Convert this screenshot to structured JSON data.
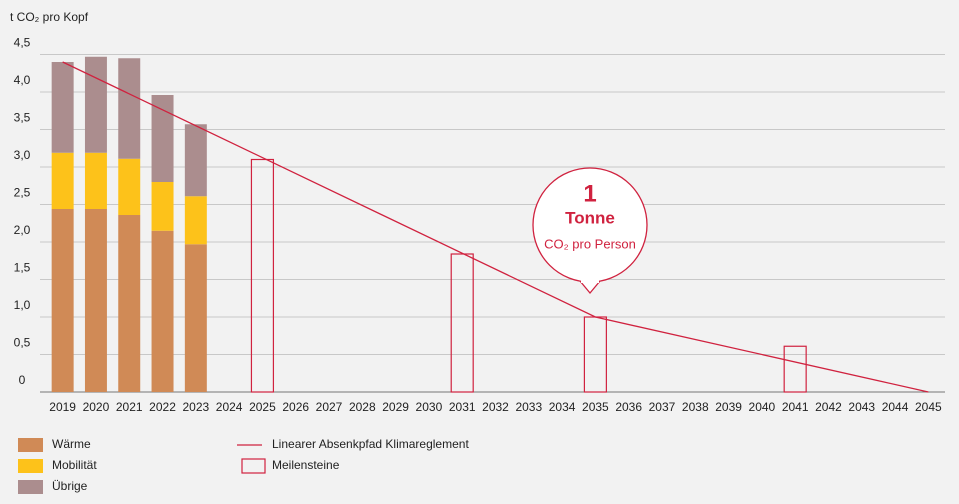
{
  "chart_data": {
    "type": "bar",
    "y_label": "t CO₂ pro Kopf",
    "categories": [
      "2019",
      "2020",
      "2021",
      "2022",
      "2023",
      "2024",
      "2025",
      "2026",
      "2027",
      "2028",
      "2029",
      "2030",
      "2031",
      "2032",
      "2033",
      "2034",
      "2035",
      "2036",
      "2037",
      "2038",
      "2039",
      "2040",
      "2041",
      "2042",
      "2043",
      "2044",
      "2045"
    ],
    "series": [
      {
        "name": "Wärme",
        "color": "#d08a56",
        "values": [
          2.44,
          2.44,
          2.36,
          2.15,
          1.97,
          null,
          null,
          null,
          null,
          null,
          null,
          null,
          null,
          null,
          null,
          null,
          null,
          null,
          null,
          null,
          null,
          null,
          null,
          null,
          null,
          null,
          null
        ]
      },
      {
        "name": "Mobilität",
        "color": "#fdc21a",
        "values": [
          0.75,
          0.75,
          0.75,
          0.65,
          0.64,
          null,
          null,
          null,
          null,
          null,
          null,
          null,
          null,
          null,
          null,
          null,
          null,
          null,
          null,
          null,
          null,
          null,
          null,
          null,
          null,
          null,
          null
        ]
      },
      {
        "name": "Übrige",
        "color": "#ab8d8e",
        "values": [
          1.21,
          1.28,
          1.34,
          1.16,
          0.96,
          null,
          null,
          null,
          null,
          null,
          null,
          null,
          null,
          null,
          null,
          null,
          null,
          null,
          null,
          null,
          null,
          null,
          null,
          null,
          null,
          null,
          null
        ]
      }
    ],
    "milestones": {
      "name": "Meilensteine",
      "color": "#d0223f",
      "values": [
        null,
        null,
        null,
        null,
        null,
        null,
        3.1,
        null,
        null,
        null,
        null,
        null,
        1.84,
        null,
        null,
        null,
        1.0,
        null,
        null,
        null,
        null,
        null,
        0.61,
        null,
        null,
        null,
        null
      ]
    },
    "line": {
      "name": "Linearer Absenkpfad Klimareglement",
      "color": "#d0223f",
      "x": [
        "2019",
        "2035",
        "2045"
      ],
      "values": [
        4.4,
        1.0,
        0
      ]
    },
    "annotation": {
      "number": "1",
      "unit": "Tonne",
      "text": "CO₂ pro Person"
    },
    "ylim": [
      0,
      4.5
    ],
    "yticks": [
      0,
      {
        "value": 0.5,
        "label": "0,5"
      },
      {
        "value": 1.0,
        "label": "1,0"
      },
      {
        "value": 1.5,
        "label": "1,5"
      },
      {
        "value": 2.0,
        "label": "2,0"
      },
      {
        "value": 2.5,
        "label": "2,5"
      },
      {
        "value": 3.0,
        "label": "3,0"
      },
      {
        "value": 3.5,
        "label": "3,5"
      },
      {
        "value": 4.0,
        "label": "4,0"
      },
      {
        "value": 4.5,
        "label": "4,5"
      }
    ],
    "grid": true
  }
}
